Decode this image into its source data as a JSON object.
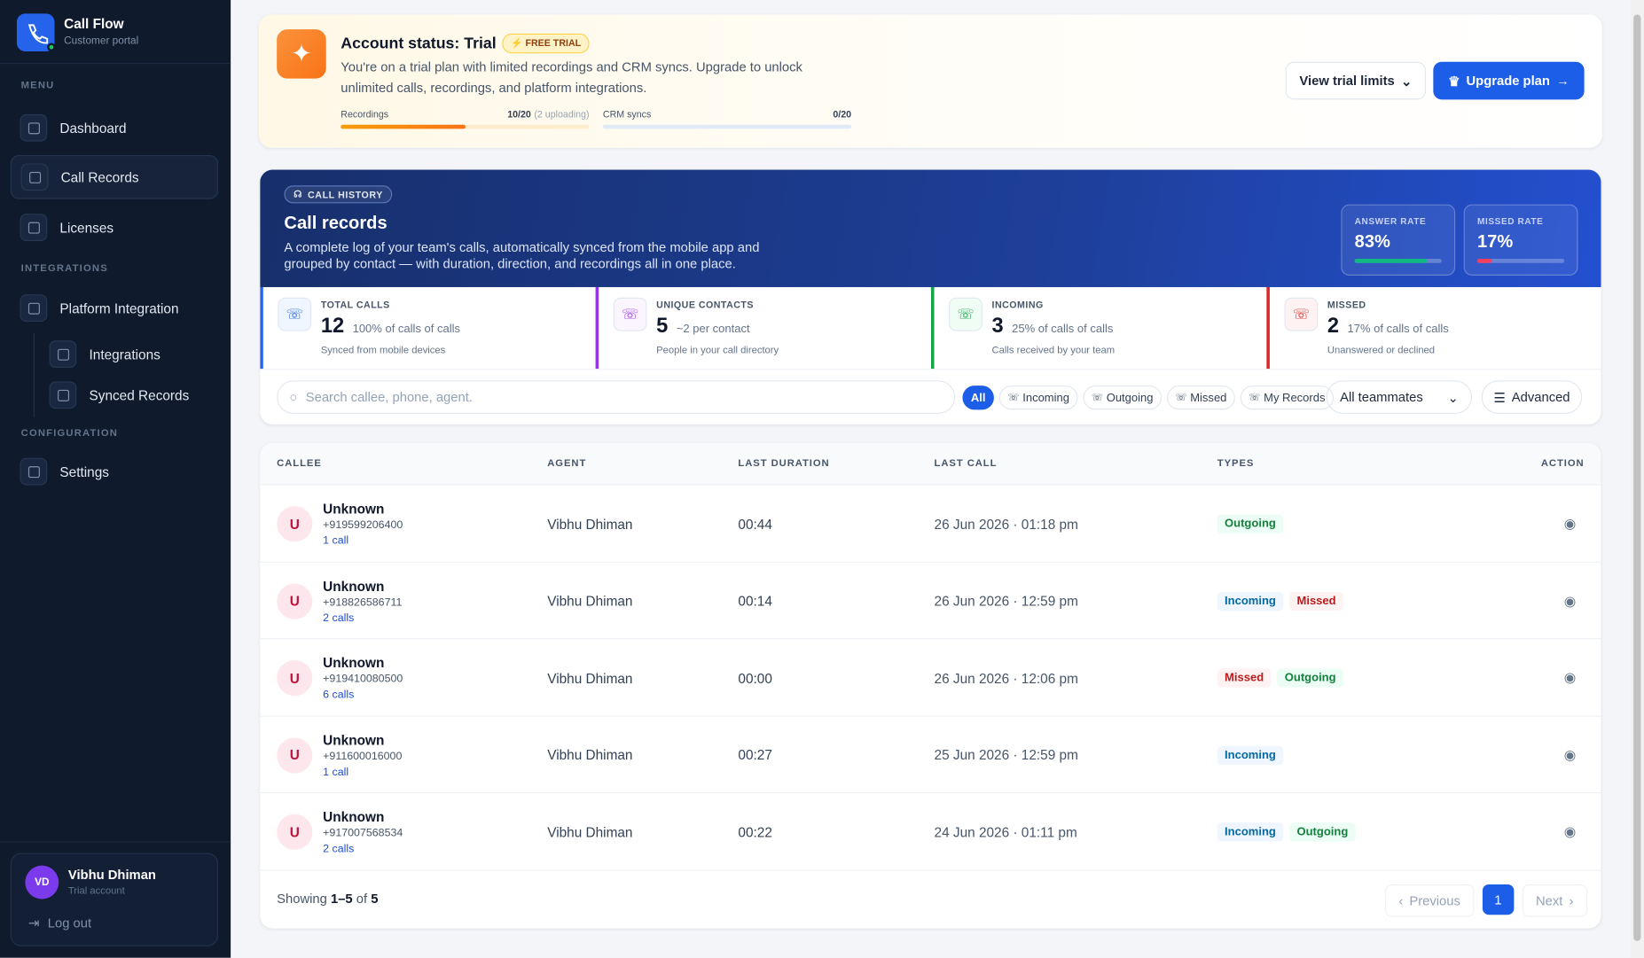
{
  "sidebar": {
    "brand": {
      "name": "Call Flow",
      "subtitle": "Customer portal"
    },
    "sections": [
      {
        "title": "MENU",
        "items": [
          "Dashboard",
          "Call Records",
          "Licenses"
        ]
      },
      {
        "title": "INTEGRATIONS",
        "items": [
          "Platform Integration"
        ],
        "subitems": [
          "Integrations",
          "Synced Records"
        ]
      },
      {
        "title": "CONFIGURATION",
        "items": [
          "Settings"
        ]
      }
    ],
    "user": {
      "initials": "VD",
      "name": "Vibhu Dhiman",
      "role": "Trial account",
      "logout": "Log out"
    }
  },
  "banner": {
    "title": "Account status: Trial",
    "badge": "FREE TRIAL",
    "text": "You're on a trial plan with limited recordings and CRM syncs. Upgrade to unlock unlimited calls, recordings, and platform integrations.",
    "progress": [
      {
        "label": "Recordings",
        "value": "10/20",
        "note": "(2 uploading)"
      },
      {
        "label": "CRM syncs",
        "value": "0/20"
      }
    ],
    "buttons": [
      "View trial limits",
      "Upgrade plan"
    ]
  },
  "hero": {
    "tag": "CALL HISTORY",
    "title": "Call records",
    "description": "A complete log of your team's calls, automatically synced from the mobile app and grouped by contact — with duration, direction, and recordings all in one place.",
    "rates": [
      {
        "label": "ANSWER RATE",
        "value": "83%"
      },
      {
        "label": "MISSED RATE",
        "value": "17%"
      }
    ]
  },
  "stats": [
    {
      "label": "TOTAL CALLS",
      "value": "12",
      "detail": "100% of calls of calls",
      "sub": "Synced from mobile devices"
    },
    {
      "label": "UNIQUE CONTACTS",
      "value": "5",
      "detail": "~2 per contact",
      "sub": "People in your call directory"
    },
    {
      "label": "INCOMING",
      "value": "3",
      "detail": "25% of calls of calls",
      "sub": "Calls received by your team"
    },
    {
      "label": "MISSED",
      "value": "2",
      "detail": "17% of calls of calls",
      "sub": "Unanswered or declined"
    }
  ],
  "filters": {
    "search": "Search callee, phone, agent.",
    "chips": [
      "All",
      "Incoming",
      "Outgoing",
      "Missed",
      "My Records"
    ],
    "select": "All teammates",
    "advanced": "Advanced"
  },
  "table": {
    "columns": [
      "CALLEE",
      "AGENT",
      "LAST DURATION",
      "LAST CALL",
      "TYPES",
      "ACTION"
    ],
    "rows": [
      {
        "avatar": "U",
        "name": "Unknown",
        "phone": "+919599206400",
        "calls": "1 call",
        "agent": "Vibhu Dhiman",
        "duration": "00:44",
        "last_call": "26 Jun 2026 · 01:18 pm",
        "types": [
          "Outgoing"
        ]
      },
      {
        "avatar": "U",
        "name": "Unknown",
        "phone": "+918826586711",
        "calls": "2 calls",
        "agent": "Vibhu Dhiman",
        "duration": "00:14",
        "last_call": "26 Jun 2026 · 12:59 pm",
        "types": [
          "Incoming",
          "Missed"
        ]
      },
      {
        "avatar": "U",
        "name": "Unknown",
        "phone": "+919410080500",
        "calls": "6 calls",
        "agent": "Vibhu Dhiman",
        "duration": "00:00",
        "last_call": "26 Jun 2026 · 12:06 pm",
        "types": [
          "Missed",
          "Outgoing"
        ]
      },
      {
        "avatar": "U",
        "name": "Unknown",
        "phone": "+911600016000",
        "calls": "1 call",
        "agent": "Vibhu Dhiman",
        "duration": "00:27",
        "last_call": "25 Jun 2026 · 12:59 pm",
        "types": [
          "Incoming"
        ]
      },
      {
        "avatar": "U",
        "name": "Unknown",
        "phone": "+917007568534",
        "calls": "2 calls",
        "agent": "Vibhu Dhiman",
        "duration": "00:22",
        "last_call": "24 Jun 2026 · 01:11 pm",
        "types": [
          "Incoming",
          "Outgoing"
        ]
      }
    ],
    "footer": {
      "prefix": "Showing",
      "range": "1–5",
      "of": "of",
      "total": "5"
    },
    "pagination": [
      "Previous",
      "1",
      "Next"
    ]
  }
}
